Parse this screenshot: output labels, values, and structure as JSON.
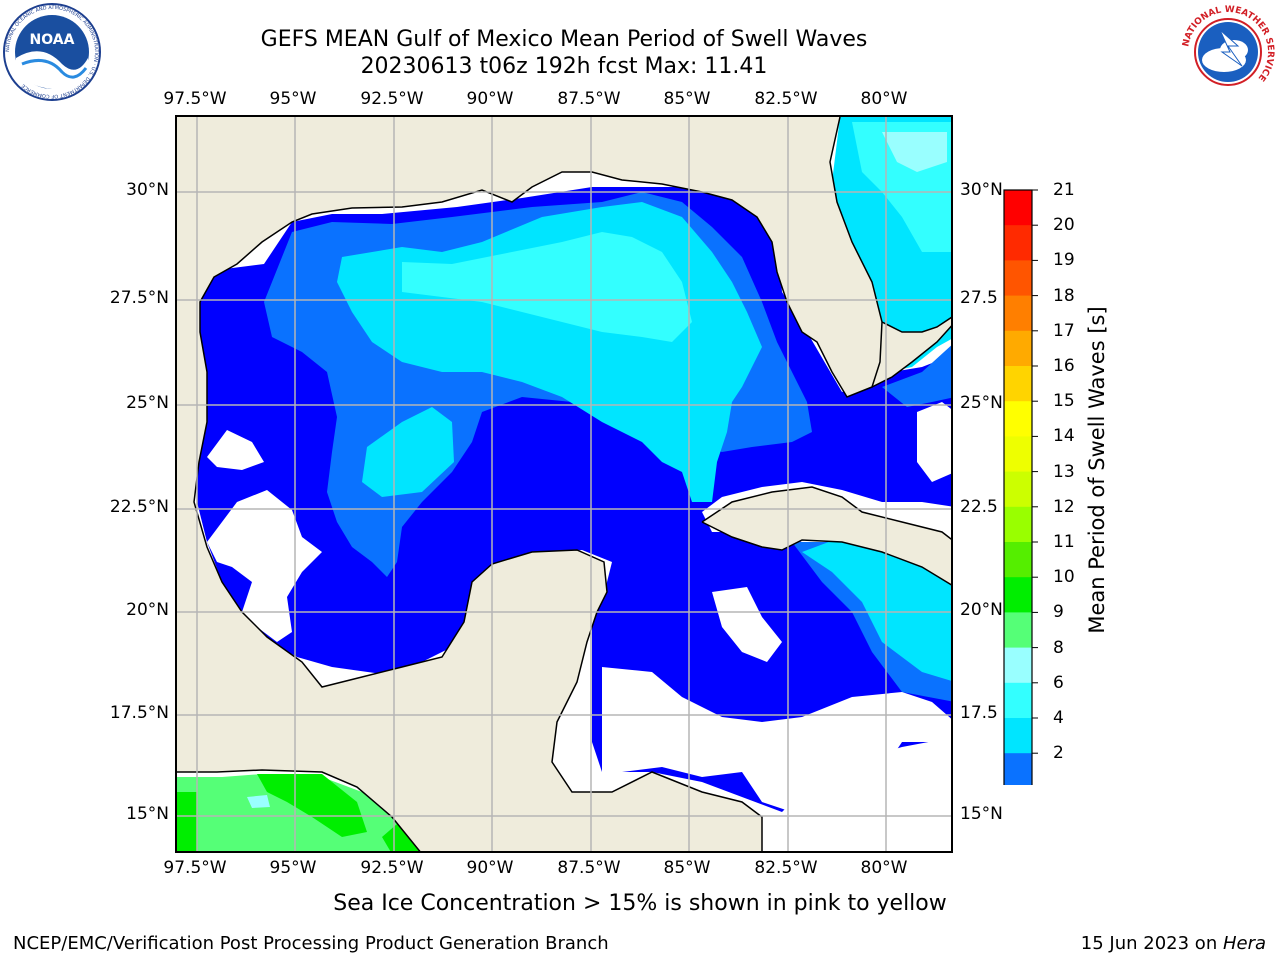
{
  "title": {
    "line1": "GEFS MEAN Gulf of Mexico Mean Period of Swell Waves",
    "line2": "20230613 t06z 192h fcst   Max: 11.41"
  },
  "logos": {
    "left": {
      "name": "noaa-logo",
      "text": "NOAA",
      "ring_text": "NATIONAL OCEANIC AND ATMOSPHERIC ADMINISTRATION · U.S. DEPARTMENT OF COMMERCE"
    },
    "right": {
      "name": "nws-logo",
      "ring_text": "NATIONAL WEATHER SERVICE"
    }
  },
  "map": {
    "lon_labels": [
      "97.5°W",
      "95°W",
      "92.5°W",
      "90°W",
      "87.5°W",
      "85°W",
      "82.5°W",
      "80°W"
    ],
    "lat_labels_left": [
      "30°N",
      "27.5°N",
      "25°N",
      "22.5°N",
      "20°N",
      "17.5°N",
      "15°N"
    ],
    "lat_labels_right": [
      "30°N",
      "27.5",
      "25°N",
      "22.5",
      "20°N",
      "17.5",
      "15°N"
    ],
    "colors": {
      "land": "#efecdc",
      "coast": "#000000",
      "grid": "#b5b5b5",
      "ocean_lt2": "#0000ff",
      "ocean_2_4": "#0a72ff",
      "ocean_4_6": "#00e5ff",
      "ocean_6_8": "#33ffff",
      "ocean_8_9": "#99ffff",
      "green_9_10": "#55ff77",
      "green_10_11": "#00ee00"
    }
  },
  "colorbar": {
    "label": "Mean Period of Swell Waves [s]",
    "ticks": [
      "21",
      "20",
      "19",
      "18",
      "17",
      "16",
      "15",
      "14",
      "13",
      "12",
      "11",
      "10",
      "9",
      "8",
      "6",
      "4",
      "2"
    ],
    "colors": [
      "#ff0000",
      "#ff2a00",
      "#ff5500",
      "#ff7f00",
      "#ffaa00",
      "#ffd400",
      "#ffff00",
      "#eeff00",
      "#ccff00",
      "#99ff00",
      "#55ee00",
      "#00ee00",
      "#55ff77",
      "#99ffff",
      "#33ffff",
      "#00e5ff",
      "#0a72ff"
    ],
    "extend_color": "#0000ff"
  },
  "sea_ice_note": "Sea Ice Concentration > 15% is shown in pink to yellow",
  "footer": {
    "left": "NCEP/EMC/Verification Post Processing Product Generation Branch",
    "right_prefix": "15 Jun 2023 on ",
    "right_host": "Hera"
  }
}
